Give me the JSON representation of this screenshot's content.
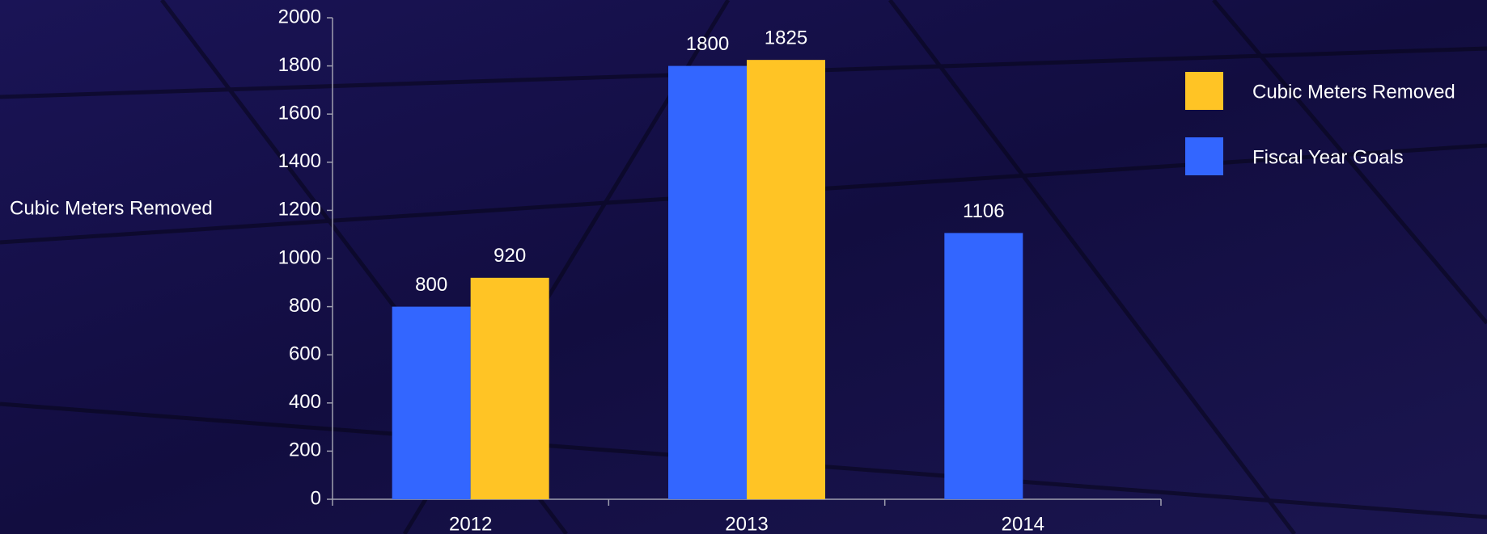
{
  "chart_data": {
    "type": "bar",
    "y_label": "Cubic Meters Removed",
    "categories": [
      "2012",
      "2013",
      "2014"
    ],
    "series": [
      {
        "name": "Fiscal Year Goals",
        "color": "#3366ff",
        "values": [
          800,
          1800,
          1106
        ]
      },
      {
        "name": "Cubic Meters Removed",
        "color": "#ffc425",
        "values": [
          920,
          1825,
          null
        ]
      }
    ],
    "ylim": [
      0,
      2000
    ],
    "yticks": [
      0,
      200,
      400,
      600,
      800,
      1000,
      1200,
      1400,
      1600,
      1800,
      2000
    ],
    "legend": "right"
  }
}
